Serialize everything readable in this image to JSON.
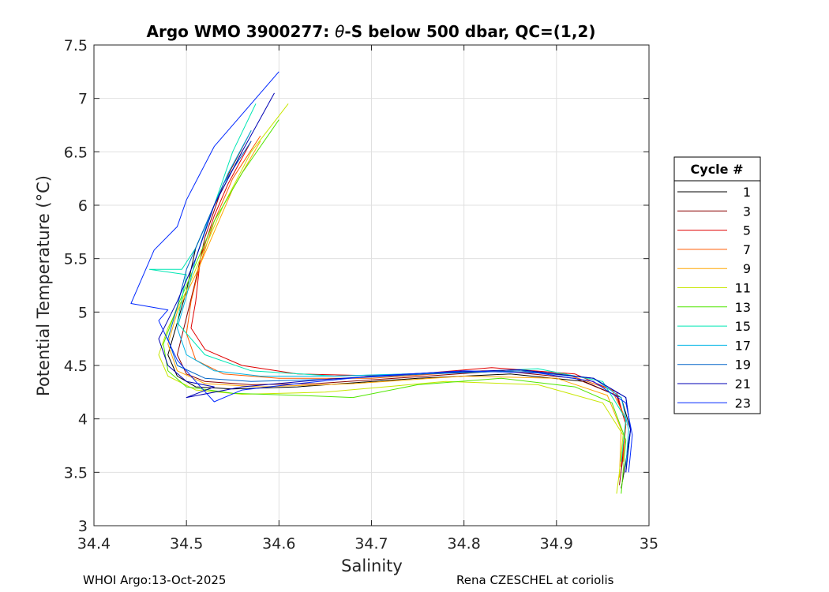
{
  "chart_data": {
    "type": "line",
    "title_prefix": "Argo WMO 3900277: ",
    "title_theta": "θ",
    "title_suffix": "-S below 500 dbar,  QC=(1,2)",
    "xlabel": "Salinity",
    "ylabel": "Potential Temperature (°C)",
    "xlim": [
      34.4,
      35
    ],
    "ylim": [
      3,
      7.5
    ],
    "xticks": [
      "34.4",
      "34.5",
      "34.6",
      "34.7",
      "34.8",
      "34.9",
      "35"
    ],
    "yticks": [
      "3",
      "3.5",
      "4",
      "4.5",
      "5",
      "5.5",
      "6",
      "6.5",
      "7",
      "7.5"
    ],
    "grid": true,
    "legend_title": "Cycle #",
    "legend_position": "right",
    "series": [
      {
        "name": "1",
        "color": "#000000",
        "x": [
          34.56,
          34.53,
          34.51,
          34.5,
          34.49,
          34.48,
          34.49,
          34.51,
          34.55,
          34.62,
          34.75,
          34.85,
          34.93,
          34.97,
          34.98,
          34.975,
          34.97
        ],
        "y": [
          6.5,
          6.0,
          5.6,
          5.2,
          4.9,
          4.6,
          4.4,
          4.3,
          4.28,
          4.3,
          4.38,
          4.42,
          4.35,
          4.2,
          3.9,
          3.6,
          3.35
        ]
      },
      {
        "name": "3",
        "color": "#8a0000",
        "x": [
          34.57,
          34.54,
          34.52,
          34.51,
          34.5,
          34.49,
          34.5,
          34.52,
          34.57,
          34.64,
          34.76,
          34.84,
          34.92,
          34.965,
          34.975,
          34.972,
          34.968
        ],
        "y": [
          6.7,
          6.2,
          5.7,
          5.3,
          4.95,
          4.6,
          4.42,
          4.35,
          4.32,
          4.33,
          4.4,
          4.45,
          4.38,
          4.22,
          3.95,
          3.65,
          3.38
        ]
      },
      {
        "name": "5",
        "color": "#e00000",
        "x": [
          34.57,
          34.545,
          34.53,
          34.515,
          34.51,
          34.505,
          34.52,
          34.56,
          34.62,
          34.72,
          34.83,
          34.92,
          34.965,
          34.975,
          34.97
        ],
        "y": [
          6.6,
          6.2,
          5.9,
          5.5,
          5.1,
          4.85,
          4.65,
          4.5,
          4.42,
          4.4,
          4.48,
          4.42,
          4.25,
          3.95,
          3.55
        ]
      },
      {
        "name": "7",
        "color": "#ff5a00",
        "x": [
          34.58,
          34.55,
          34.53,
          34.515,
          34.505,
          34.5,
          34.51,
          34.54,
          34.6,
          34.7,
          34.82,
          34.91,
          34.96,
          34.975,
          34.972
        ],
        "y": [
          6.65,
          6.25,
          5.85,
          5.45,
          5.1,
          4.8,
          4.55,
          4.42,
          4.38,
          4.38,
          4.45,
          4.42,
          4.27,
          4.0,
          3.6
        ]
      },
      {
        "name": "9",
        "color": "#ffa500",
        "x": [
          34.58,
          34.55,
          34.53,
          34.51,
          34.49,
          34.48,
          34.49,
          34.52,
          34.58,
          34.68,
          34.8,
          34.9,
          34.955,
          34.97,
          34.968
        ],
        "y": [
          6.6,
          6.15,
          5.75,
          5.35,
          5.0,
          4.7,
          4.45,
          4.33,
          4.3,
          4.33,
          4.4,
          4.38,
          4.22,
          3.9,
          3.45
        ]
      },
      {
        "name": "11",
        "color": "#c8e600",
        "x": [
          34.61,
          34.57,
          34.54,
          34.52,
          34.5,
          34.48,
          34.47,
          34.48,
          34.51,
          34.56,
          34.65,
          34.78,
          34.88,
          34.95,
          34.972,
          34.968,
          34.965
        ],
        "y": [
          6.95,
          6.5,
          6.0,
          5.6,
          5.2,
          4.85,
          4.6,
          4.4,
          4.27,
          4.23,
          4.25,
          4.35,
          4.32,
          4.15,
          3.85,
          3.5,
          3.3
        ]
      },
      {
        "name": "13",
        "color": "#50e600",
        "x": [
          34.6,
          34.56,
          34.53,
          34.51,
          34.49,
          34.475,
          34.48,
          34.5,
          34.55,
          34.62,
          34.68,
          34.75,
          34.84,
          34.92,
          34.96,
          34.975,
          34.97
        ],
        "y": [
          6.8,
          6.3,
          5.85,
          5.45,
          5.05,
          4.7,
          4.45,
          4.3,
          4.24,
          4.22,
          4.2,
          4.32,
          4.38,
          4.3,
          4.15,
          3.8,
          3.3
        ]
      },
      {
        "name": "15",
        "color": "#00e6b4",
        "x": [
          34.575,
          34.55,
          34.53,
          34.51,
          34.495,
          34.48,
          34.46,
          34.5,
          34.49,
          34.52,
          34.57,
          34.66,
          34.78,
          34.88,
          34.95,
          34.975,
          34.97
        ],
        "y": [
          6.95,
          6.5,
          6.0,
          5.6,
          5.4,
          5.4,
          5.4,
          5.35,
          4.9,
          4.6,
          4.45,
          4.4,
          4.43,
          4.47,
          4.35,
          4.0,
          3.6
        ]
      },
      {
        "name": "17",
        "color": "#00b4e6",
        "x": [
          34.57,
          34.545,
          34.525,
          34.51,
          34.5,
          34.49,
          34.5,
          34.53,
          34.58,
          34.66,
          34.77,
          34.87,
          34.94,
          34.97,
          34.978,
          34.975
        ],
        "y": [
          6.7,
          6.3,
          5.9,
          5.5,
          5.15,
          4.85,
          4.6,
          4.45,
          4.4,
          4.4,
          4.43,
          4.45,
          4.38,
          4.2,
          3.9,
          3.55
        ]
      },
      {
        "name": "19",
        "color": "#0064c8",
        "x": [
          34.57,
          34.54,
          34.52,
          34.5,
          34.49,
          34.48,
          34.49,
          34.52,
          34.57,
          34.65,
          34.76,
          34.86,
          34.94,
          34.975,
          34.98,
          34.975
        ],
        "y": [
          6.6,
          6.2,
          5.8,
          5.4,
          5.05,
          4.75,
          4.5,
          4.38,
          4.35,
          4.37,
          4.42,
          4.45,
          4.38,
          4.2,
          3.9,
          3.5
        ]
      },
      {
        "name": "21",
        "color": "#0000b4",
        "x": [
          34.595,
          34.56,
          34.53,
          34.51,
          34.49,
          34.47,
          34.48,
          34.5,
          34.53,
          34.5,
          34.56,
          34.65,
          34.76,
          34.86,
          34.94,
          34.975,
          34.98,
          34.975
        ],
        "y": [
          7.05,
          6.5,
          6.0,
          5.5,
          5.1,
          4.75,
          4.5,
          4.35,
          4.3,
          4.2,
          4.3,
          4.37,
          4.43,
          4.46,
          4.38,
          4.2,
          3.9,
          3.5
        ]
      },
      {
        "name": "23",
        "color": "#0028ff",
        "x": [
          34.6,
          34.53,
          34.5,
          34.49,
          34.465,
          34.44,
          34.48,
          34.47,
          34.49,
          34.51,
          34.53,
          34.56,
          34.62,
          34.7,
          34.8,
          34.88,
          34.94,
          34.975,
          34.982,
          34.978
        ],
        "y": [
          7.25,
          6.55,
          6.05,
          5.8,
          5.58,
          5.08,
          5.02,
          4.92,
          4.55,
          4.35,
          4.16,
          4.27,
          4.33,
          4.4,
          4.45,
          4.43,
          4.35,
          4.15,
          3.85,
          3.5
        ]
      }
    ]
  },
  "footer": {
    "left": "WHOI Argo:13-Oct-2025",
    "right": "Rena CZESCHEL at coriolis"
  }
}
